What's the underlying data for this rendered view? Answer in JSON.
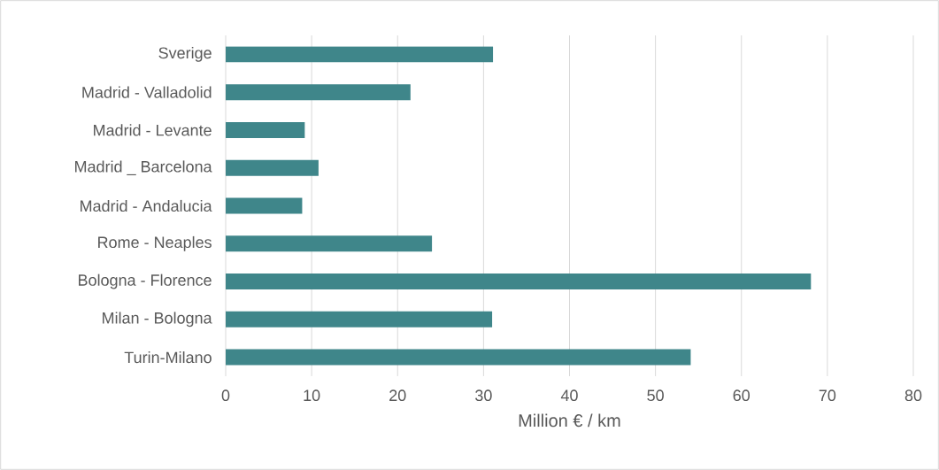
{
  "chart_data": {
    "type": "bar",
    "orientation": "horizontal",
    "xlabel": "Million € / km",
    "categories": [
      "Sverige",
      "Madrid - Valladolid",
      "Madrid - Levante",
      "Madrid _ Barcelona",
      "Madrid - Andalucia",
      "Rome - Neaples",
      "Bologna - Florence",
      "Milan - Bologna",
      "Turin-Milano"
    ],
    "values": [
      31.1,
      21.5,
      9.2,
      10.8,
      8.9,
      24,
      68.1,
      31,
      54.1
    ],
    "color": "#3f868a",
    "xlim": [
      0,
      80
    ],
    "xticks": [
      0,
      10,
      20,
      30,
      40,
      50,
      60,
      70,
      80
    ],
    "grid": "x"
  }
}
